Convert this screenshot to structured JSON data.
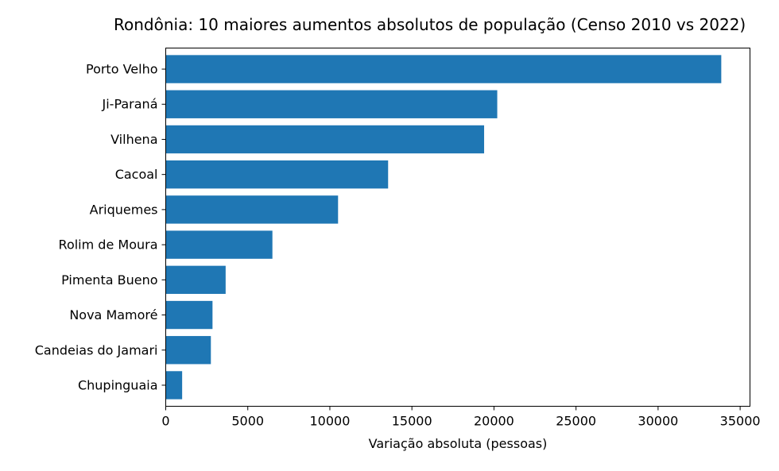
{
  "chart_data": {
    "type": "bar",
    "orientation": "horizontal",
    "title": "Rondônia: 10 maiores aumentos absolutos de população (Censo 2010 vs 2022)",
    "xlabel": "Variação absoluta (pessoas)",
    "ylabel": "",
    "categories": [
      "Porto Velho",
      "Ji-Paraná",
      "Vilhena",
      "Cacoal",
      "Ariquemes",
      "Rolim de Moura",
      "Pimenta Bueno",
      "Nova Mamoré",
      "Candeias do Jamari",
      "Chupinguaia"
    ],
    "values": [
      33850,
      20200,
      19400,
      13550,
      10500,
      6500,
      3650,
      2850,
      2750,
      1000
    ],
    "xlim": [
      0,
      35600
    ],
    "xticks": [
      0,
      5000,
      10000,
      15000,
      20000,
      25000,
      30000,
      35000
    ],
    "xtick_labels": [
      "0",
      "5000",
      "10000",
      "15000",
      "20000",
      "25000",
      "30000",
      "35000"
    ],
    "grid": false,
    "legend": "none",
    "bar_color": "#1f77b4"
  }
}
